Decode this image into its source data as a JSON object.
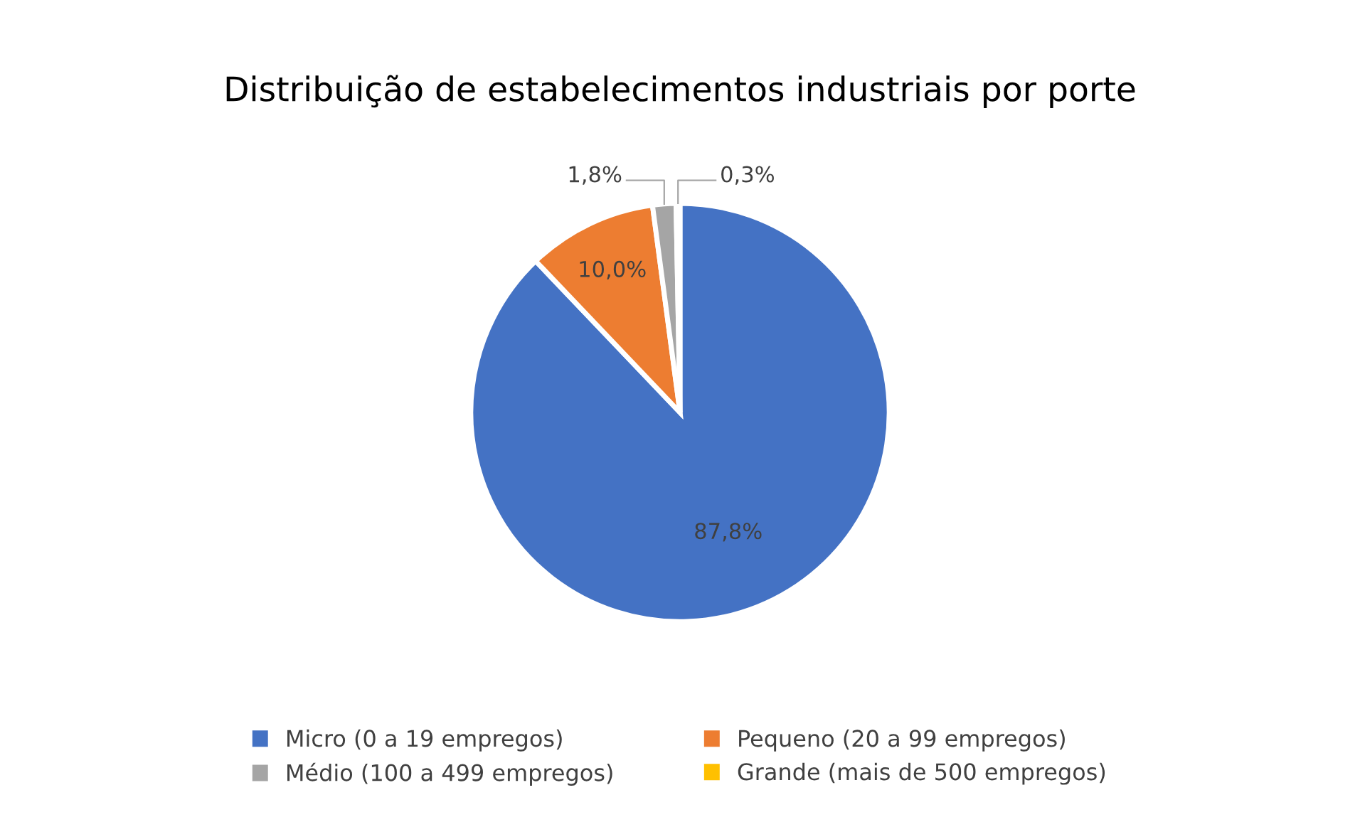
{
  "chart_data": {
    "type": "pie",
    "title": "Distribuição de estabelecimentos industriais por porte",
    "categories": [
      "Micro (0 a 19 empregos)",
      "Pequeno (20 a 99 empregos)",
      "Médio (100 a 499 empregos)",
      "Grande (mais de 500 empregos)"
    ],
    "values": [
      87.8,
      10.0,
      1.8,
      0.3
    ],
    "colors": [
      "#4472c4",
      "#ed7d31",
      "#a5a5a5",
      "#ffc000"
    ],
    "value_labels": [
      "87,8%",
      "10,0%",
      "1,8%",
      "0,3%"
    ],
    "legend": "bottom"
  }
}
